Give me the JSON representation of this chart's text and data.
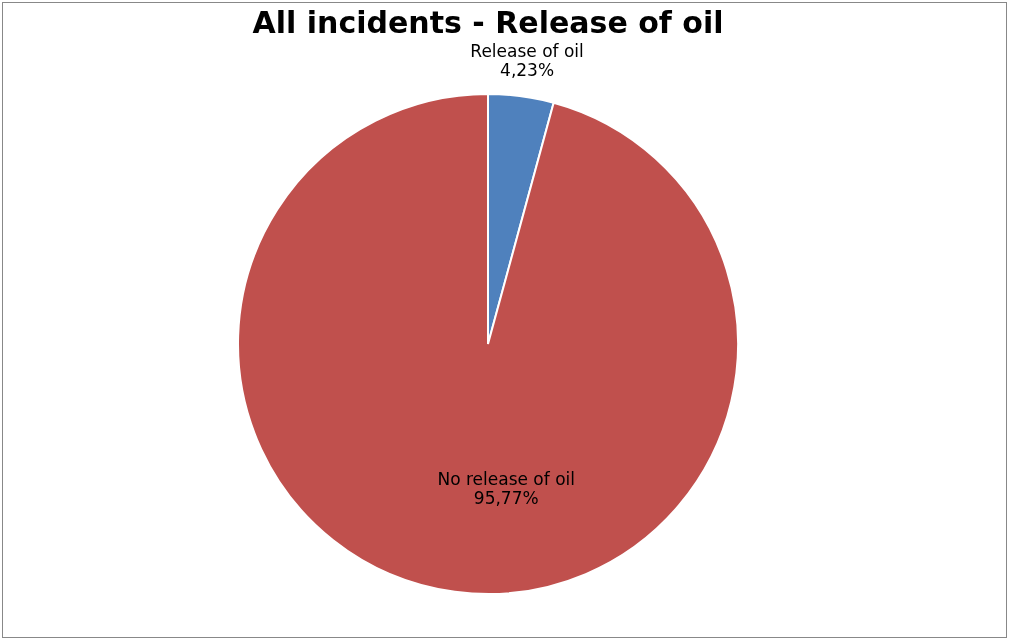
{
  "chart_data": {
    "type": "pie",
    "title": "All incidents - Release of oil",
    "categories": [
      "Release of oil",
      "No release of oil"
    ],
    "values": [
      4.23,
      95.77
    ],
    "colors": [
      "#4f81bd",
      "#c0504d"
    ],
    "value_labels": [
      "4,23%",
      "95,77%"
    ],
    "legend": false
  }
}
